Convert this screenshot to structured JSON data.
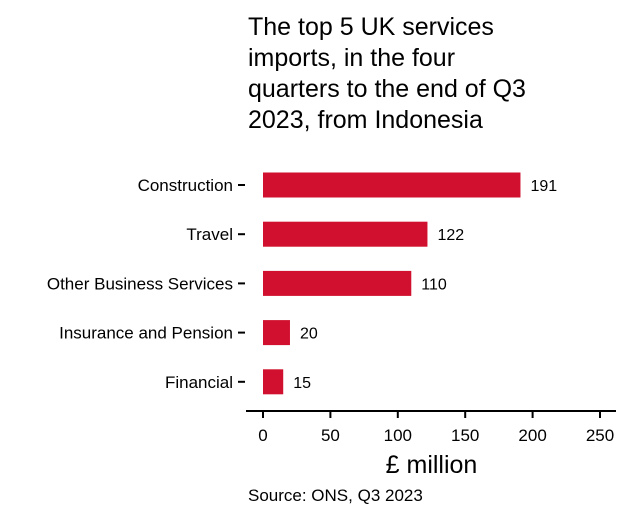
{
  "chart_data": {
    "type": "bar",
    "orientation": "horizontal",
    "title_lines": [
      "The top 5 UK services",
      "imports, in the four",
      "quarters to the end of Q3",
      "2023, from Indonesia"
    ],
    "categories": [
      "Construction",
      "Travel",
      "Other Business Services",
      "Insurance and Pension",
      "Financial"
    ],
    "values": [
      191,
      122,
      110,
      20,
      15
    ],
    "data_labels": [
      "191",
      "122",
      "110",
      "20",
      "15"
    ],
    "xlabel": "£ million",
    "xlim": [
      0,
      250
    ],
    "xticks": [
      0,
      50,
      100,
      150,
      200,
      250
    ],
    "bar_color": "#d0102e",
    "grid": false,
    "source": "Source: ONS, Q3 2023"
  }
}
